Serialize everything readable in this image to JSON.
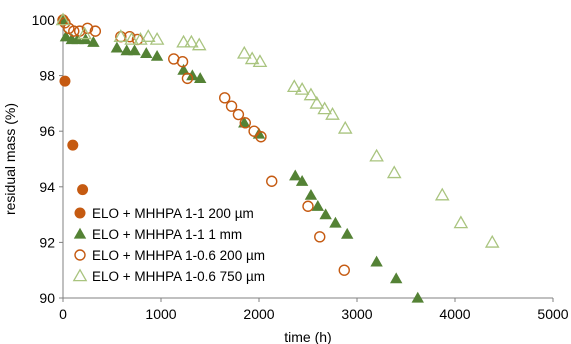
{
  "chart_data": {
    "type": "scatter",
    "xlabel": "time (h)",
    "ylabel": "residual mass (%)",
    "xlim": [
      0,
      5000
    ],
    "ylim": [
      90,
      100
    ],
    "x_ticks": [
      0,
      1000,
      2000,
      3000,
      4000,
      5000
    ],
    "y_ticks": [
      90,
      92,
      94,
      96,
      98,
      100
    ],
    "grid": false,
    "legend_position": "bottom-left",
    "series": [
      {
        "name": "ELO + MHHPA 1-1 200 µm",
        "marker": "circle-filled",
        "color": "#C55A11",
        "x": [
          0,
          20,
          100,
          200
        ],
        "y": [
          100.0,
          97.8,
          95.5,
          93.9
        ]
      },
      {
        "name": "ELO + MHHPA 1-1 1 mm",
        "marker": "triangle-filled",
        "color": "#548235",
        "x": [
          0,
          30,
          90,
          150,
          230,
          310,
          550,
          650,
          730,
          850,
          960,
          1230,
          1320,
          1400,
          1850,
          2000,
          2370,
          2440,
          2530,
          2600,
          2680,
          2780,
          2900,
          3200,
          3400,
          3620
        ],
        "y": [
          100.0,
          99.4,
          99.3,
          99.3,
          99.3,
          99.2,
          99.0,
          98.9,
          98.9,
          98.8,
          98.7,
          98.2,
          98.0,
          97.9,
          96.3,
          95.9,
          94.4,
          94.2,
          93.7,
          93.3,
          93.0,
          92.7,
          92.3,
          91.3,
          90.7,
          90.0
        ]
      },
      {
        "name": "ELO + MHHPA 1-0.6 200 µm",
        "marker": "circle-open",
        "color": "#C55A11",
        "x": [
          0,
          20,
          60,
          110,
          170,
          250,
          330,
          590,
          680,
          760,
          1130,
          1220,
          1270,
          1650,
          1720,
          1790,
          1860,
          1950,
          2020,
          2130,
          2500,
          2620,
          2870
        ],
        "y": [
          100.0,
          99.9,
          99.7,
          99.6,
          99.6,
          99.7,
          99.6,
          99.4,
          99.4,
          99.3,
          98.6,
          98.5,
          97.9,
          97.2,
          96.9,
          96.6,
          96.3,
          96.0,
          95.8,
          94.2,
          93.3,
          92.2,
          91.0
        ]
      },
      {
        "name": "ELO + MHHPA 1-0.6 750 µm",
        "marker": "triangle-open",
        "color": "#A9C47F",
        "x": [
          0,
          220,
          590,
          700,
          790,
          870,
          960,
          1230,
          1310,
          1390,
          1850,
          1930,
          2010,
          2360,
          2440,
          2530,
          2590,
          2670,
          2750,
          2880,
          3200,
          3380,
          3870,
          4060,
          4380
        ],
        "y": [
          100.0,
          99.5,
          99.4,
          99.3,
          99.3,
          99.4,
          99.3,
          99.2,
          99.2,
          99.1,
          98.8,
          98.6,
          98.5,
          97.6,
          97.5,
          97.3,
          97.0,
          96.8,
          96.6,
          96.1,
          95.1,
          94.5,
          93.7,
          92.7,
          92.0
        ]
      }
    ]
  }
}
